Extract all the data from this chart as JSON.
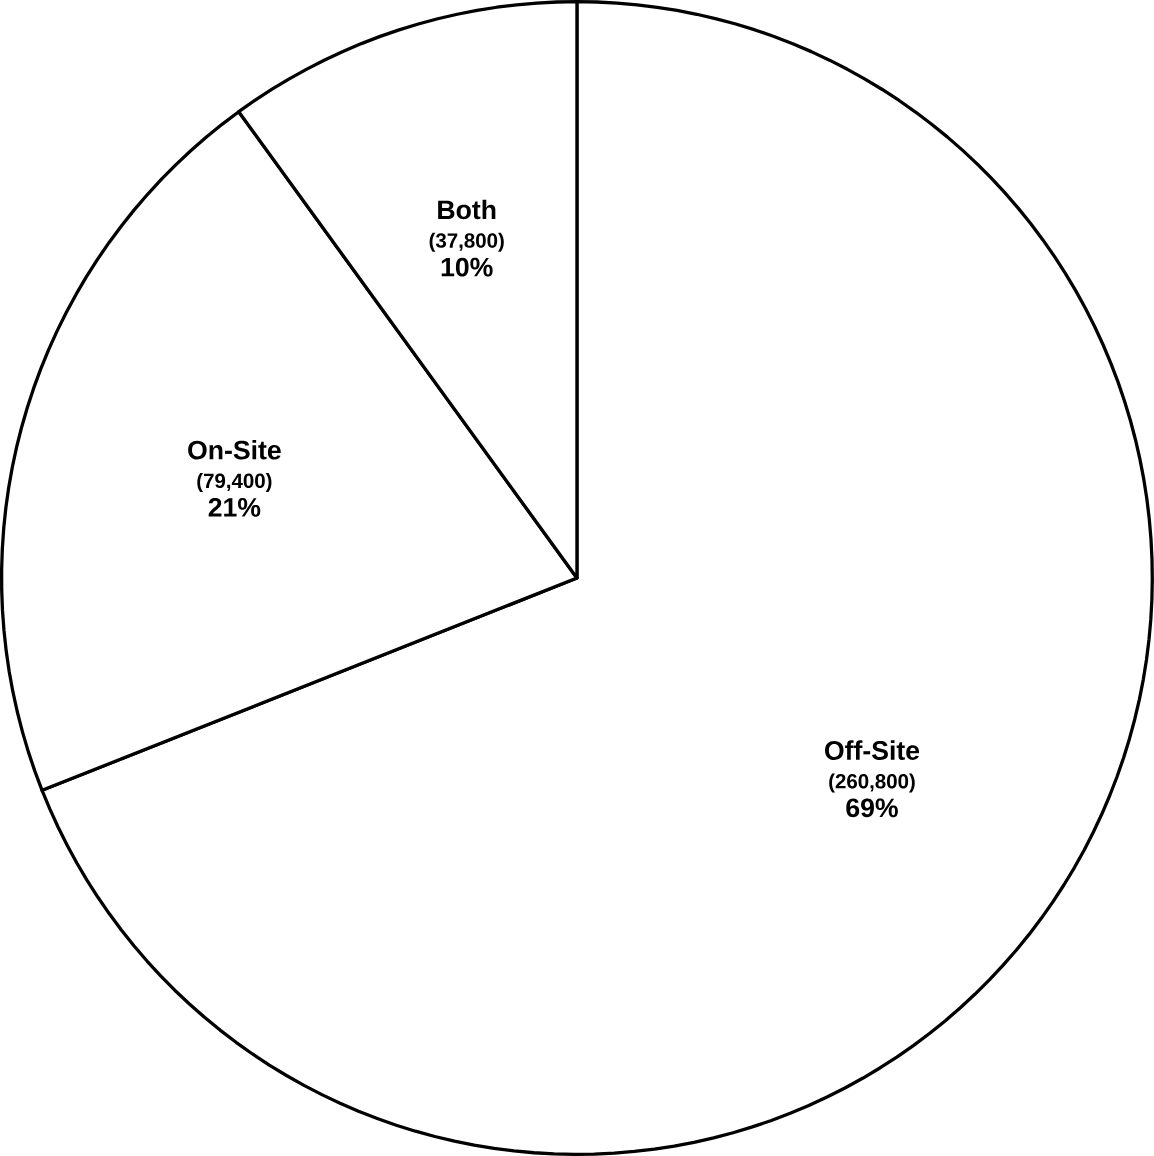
{
  "chart_data": {
    "type": "pie",
    "categories": [
      "Off-Site",
      "On-Site",
      "Both"
    ],
    "values": [
      260800,
      79400,
      37800
    ],
    "value_labels": [
      "(260,800)",
      "(79,400)",
      "(37,800)"
    ],
    "annotations": [
      "69%",
      "21%",
      "10%"
    ],
    "colors": [
      "#ffffff",
      "#ffffff",
      "#ffffff"
    ]
  }
}
